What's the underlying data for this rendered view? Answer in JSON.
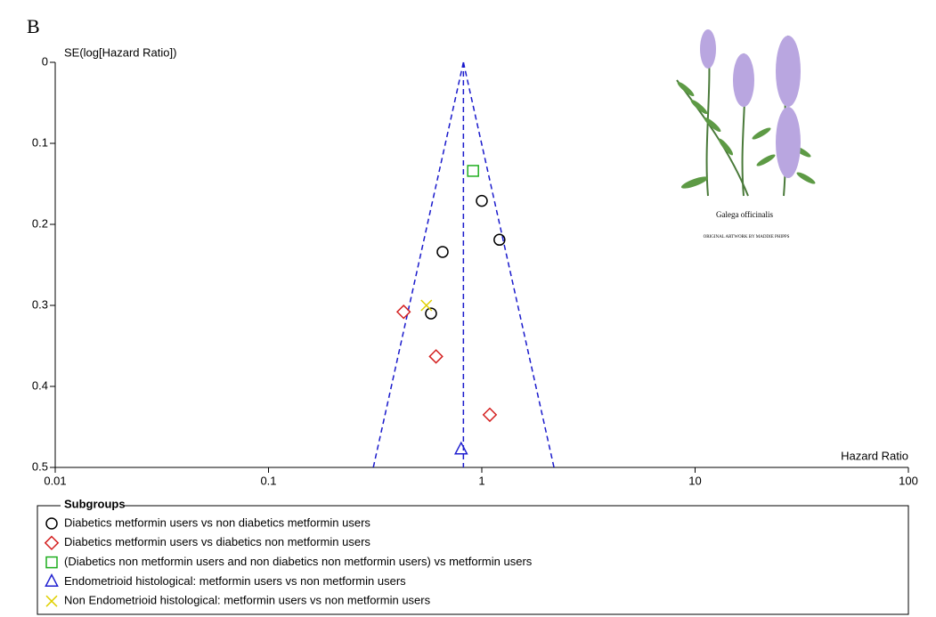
{
  "chart_data": {
    "type": "scatter",
    "panel_label": "B",
    "ylabel": "SE(log[Hazard Ratio])",
    "xlabel": "Hazard Ratio",
    "xscale": "log",
    "xlim": [
      0.01,
      100
    ],
    "xticks": [
      0.01,
      0.1,
      1,
      10,
      100
    ],
    "ylim": [
      0,
      0.5
    ],
    "yticks": [
      0,
      0.1,
      0.2,
      0.3,
      0.4,
      0.5
    ],
    "y_inverted": true,
    "summary_line": 0.82,
    "funnel_limits_at_max_se": [
      0.31,
      2.18
    ],
    "funnel_color": "#1a1acc",
    "legend_title": "Subgroups",
    "series": [
      {
        "name": "Diabetics metformin users vs non diabetics metformin users",
        "color": "#000000",
        "marker": "circle",
        "x": [
          1.0,
          1.21,
          0.655,
          0.578
        ],
        "values": [
          0.171,
          0.219,
          0.234,
          0.31
        ]
      },
      {
        "name": "Diabetics metformin users vs diabetics non metformin users",
        "color": "#d42020",
        "marker": "diamond",
        "x": [
          0.43,
          0.61,
          1.09
        ],
        "values": [
          0.308,
          0.363,
          0.435
        ]
      },
      {
        "name": "(Diabetics non metformin users and non diabetics non metformin users) vs metformin users",
        "color": "#1fae1f",
        "marker": "square",
        "x": [
          0.91
        ],
        "values": [
          0.134
        ]
      },
      {
        "name": "Endometrioid histological: metformin users vs non metformin users",
        "color": "#2020d0",
        "marker": "triangle",
        "x": [
          0.8
        ],
        "values": [
          0.478
        ]
      },
      {
        "name": "Non Endometrioid histological: metformin users vs non metformin users",
        "color": "#e0d000",
        "marker": "x",
        "x": [
          0.55
        ],
        "values": [
          0.3
        ]
      }
    ],
    "artwork": {
      "caption": "Galega officinalis",
      "credit": "ORIGINAL ARTWORK BY MADDIE PHIPPS"
    }
  }
}
